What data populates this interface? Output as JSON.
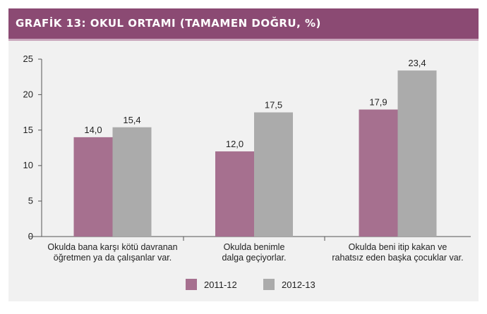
{
  "title": "GRAFİK 13: OKUL ORTAMI (TAMAMEN DOĞRU, %)",
  "colors": {
    "header_bg": "#8b4a73",
    "panel_bg": "#f1f1f1",
    "series_2011_12": "#a6708f",
    "series_2012_13": "#ababab",
    "axis": "#555555"
  },
  "chart_data": {
    "type": "bar",
    "title": "GRAFİK 13: OKUL ORTAMI (TAMAMEN DOĞRU, %)",
    "categories": [
      [
        "Okulda bana karşı kötü davranan",
        "öğretmen ya da çalışanlar var."
      ],
      [
        "Okulda benimle",
        "dalga geçiyorlar."
      ],
      [
        "Okulda beni itip kakan ve",
        "rahatsız eden başka çocuklar var."
      ]
    ],
    "series": [
      {
        "name": "2011-12",
        "values": [
          14.0,
          12.0,
          17.9
        ],
        "labels": [
          "14,0",
          "12,0",
          "17,9"
        ]
      },
      {
        "name": "2012-13",
        "values": [
          15.4,
          17.5,
          23.4
        ],
        "labels": [
          "15,4",
          "17,5",
          "23,4"
        ]
      }
    ],
    "y_ticks": [
      "0",
      "5",
      "10",
      "15",
      "20",
      "25"
    ],
    "ylim": [
      0,
      25
    ],
    "grid": false,
    "legend": "bottom-center"
  }
}
